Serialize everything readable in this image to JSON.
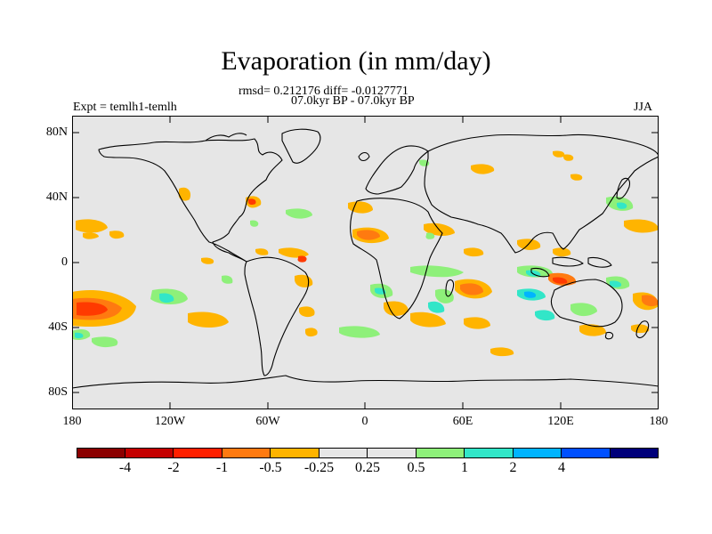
{
  "title": "Evaporation (in mm/day)",
  "stats": "rmsd= 0.212176 diff= -0.0127771",
  "period": "07.0kyr BP - 07.0kyr BP",
  "experiment": "Expt = temlh1-temlh",
  "season": "JJA",
  "lat_ticks": [
    "80N",
    "40N",
    "0",
    "40S",
    "80S"
  ],
  "lon_ticks": [
    "180",
    "120W",
    "60W",
    "0",
    "60E",
    "120E",
    "180"
  ],
  "colorbar": {
    "colors": [
      "#8b0000",
      "#c40000",
      "#ff2000",
      "#ff7a10",
      "#ffb400",
      "#e6e6e6",
      "#e6e6e6",
      "#8ef07a",
      "#32e6c8",
      "#00b4ff",
      "#0050ff",
      "#00007a"
    ],
    "labels": [
      "-4",
      "-2",
      "-1",
      "-0.5",
      "-0.25",
      "0.25",
      "0.5",
      "1",
      "2",
      "4"
    ]
  },
  "palette": {
    "background": "#e6e6e6",
    "strong_neg": "#ff7a10",
    "neg": "#ffb400",
    "deep_neg": "#ff3a00",
    "pos": "#8ef07a",
    "strong_pos": "#32e6c8"
  }
}
